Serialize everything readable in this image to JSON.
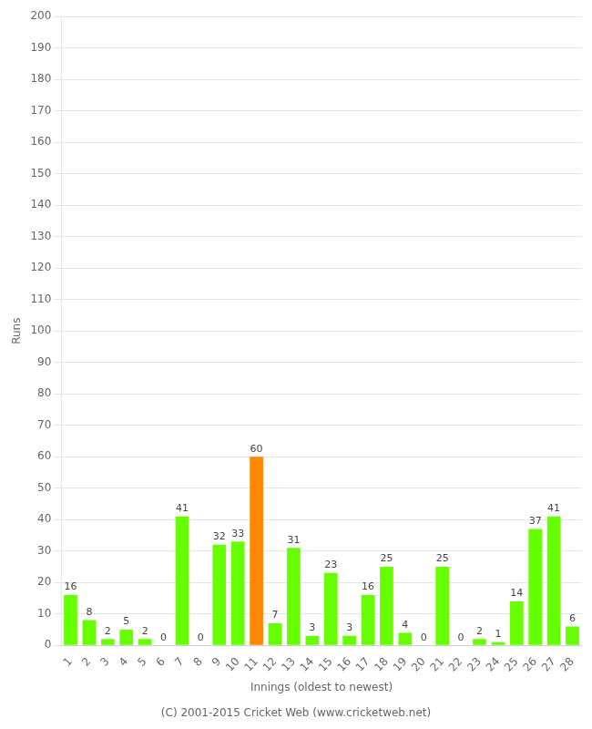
{
  "chart_data": {
    "type": "bar",
    "categories": [
      "1",
      "2",
      "3",
      "4",
      "5",
      "6",
      "7",
      "8",
      "9",
      "10",
      "11",
      "12",
      "13",
      "14",
      "15",
      "16",
      "17",
      "18",
      "19",
      "20",
      "21",
      "22",
      "23",
      "24",
      "25",
      "26",
      "27",
      "28"
    ],
    "values": [
      16,
      8,
      2,
      5,
      2,
      0,
      41,
      0,
      32,
      33,
      60,
      7,
      31,
      3,
      23,
      3,
      16,
      25,
      4,
      0,
      25,
      0,
      2,
      1,
      14,
      37,
      41,
      6
    ],
    "colors": [
      "#66ff00",
      "#66ff00",
      "#66ff00",
      "#66ff00",
      "#66ff00",
      "#66ff00",
      "#66ff00",
      "#66ff00",
      "#66ff00",
      "#66ff00",
      "#ff8800",
      "#66ff00",
      "#66ff00",
      "#66ff00",
      "#66ff00",
      "#66ff00",
      "#66ff00",
      "#66ff00",
      "#66ff00",
      "#66ff00",
      "#66ff00",
      "#66ff00",
      "#66ff00",
      "#66ff00",
      "#66ff00",
      "#66ff00",
      "#66ff00",
      "#66ff00"
    ],
    "xlabel": "Innings (oldest to newest)",
    "ylabel": "Runs",
    "ylim": [
      0,
      200
    ],
    "yticks": [
      0,
      10,
      20,
      30,
      40,
      50,
      60,
      70,
      80,
      90,
      100,
      110,
      120,
      130,
      140,
      150,
      160,
      170,
      180,
      190,
      200
    ],
    "grid": true,
    "data_labels": true,
    "annotations": [
      "(C) 2001-2015 Cricket Web (www.cricketweb.net)"
    ]
  }
}
